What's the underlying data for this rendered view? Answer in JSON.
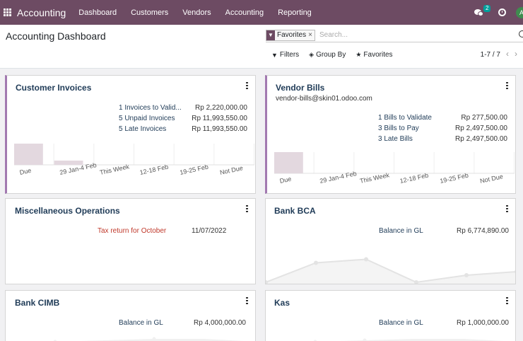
{
  "nav": {
    "brand": "Accounting",
    "menu": [
      "Dashboard",
      "Customers",
      "Vendors",
      "Accounting",
      "Reporting"
    ],
    "chat_count": "2",
    "avatar_letter": "A"
  },
  "control": {
    "title": "Accounting Dashboard",
    "facet_label": "Favorites",
    "facet_remove": "×",
    "search_placeholder": "Search...",
    "filters": "Filters",
    "group_by": "Group By",
    "favorites": "Favorites",
    "pager": "1-7 / 7"
  },
  "cards": {
    "customer_invoices": {
      "title": "Customer Invoices",
      "rows": [
        {
          "label": "1 Invoices to Valid...",
          "amount": "Rp 2,220,000.00"
        },
        {
          "label": "5 Unpaid Invoices",
          "amount": "Rp 11,993,550.00"
        },
        {
          "label": "5 Late Invoices",
          "amount": "Rp 11,993,550.00"
        }
      ],
      "chart_data": {
        "type": "bar",
        "categories": [
          "Due",
          "29 Jan-4 Feb",
          "This Week",
          "12-18 Feb",
          "19-25 Feb",
          "Not Due"
        ],
        "values": [
          1.0,
          0.2,
          0,
          0,
          0,
          0
        ]
      }
    },
    "vendor_bills": {
      "title": "Vendor Bills",
      "email": "vendor-bills@skin01.odoo.com",
      "rows": [
        {
          "label": "1 Bills to Validate",
          "amount": "Rp 277,500.00"
        },
        {
          "label": "3 Bills to Pay",
          "amount": "Rp 2,497,500.00"
        },
        {
          "label": "3 Late Bills",
          "amount": "Rp 2,497,500.00"
        }
      ],
      "chart_data": {
        "type": "bar",
        "categories": [
          "Due",
          "29 Jan-4 Feb",
          "This Week",
          "12-18 Feb",
          "19-25 Feb",
          "Not Due"
        ],
        "values": [
          1.0,
          0,
          0,
          0,
          0,
          0
        ]
      }
    },
    "misc": {
      "title": "Miscellaneous Operations",
      "item_label": "Tax return for October",
      "item_date": "11/07/2022"
    },
    "bank_bca": {
      "title": "Bank BCA",
      "label": "Balance in GL",
      "amount": "Rp 6,774,890.00",
      "chart_data": {
        "type": "line",
        "values": [
          0.0,
          0.55,
          0.65,
          0.0,
          0.2,
          0.3
        ]
      }
    },
    "bank_cimb": {
      "title": "Bank CIMB",
      "label": "Balance in GL",
      "amount": "Rp 4,000,000.00"
    },
    "kas": {
      "title": "Kas",
      "label": "Balance in GL",
      "amount": "Rp 1,000,000.00"
    }
  },
  "colors": {
    "nav": "#6d4b63",
    "title": "#1f3b57",
    "accent": "#a279b0",
    "warning_text": "#c0392b",
    "bar_fill": "#e3d8df",
    "line_fill": "#f0f0f0"
  }
}
